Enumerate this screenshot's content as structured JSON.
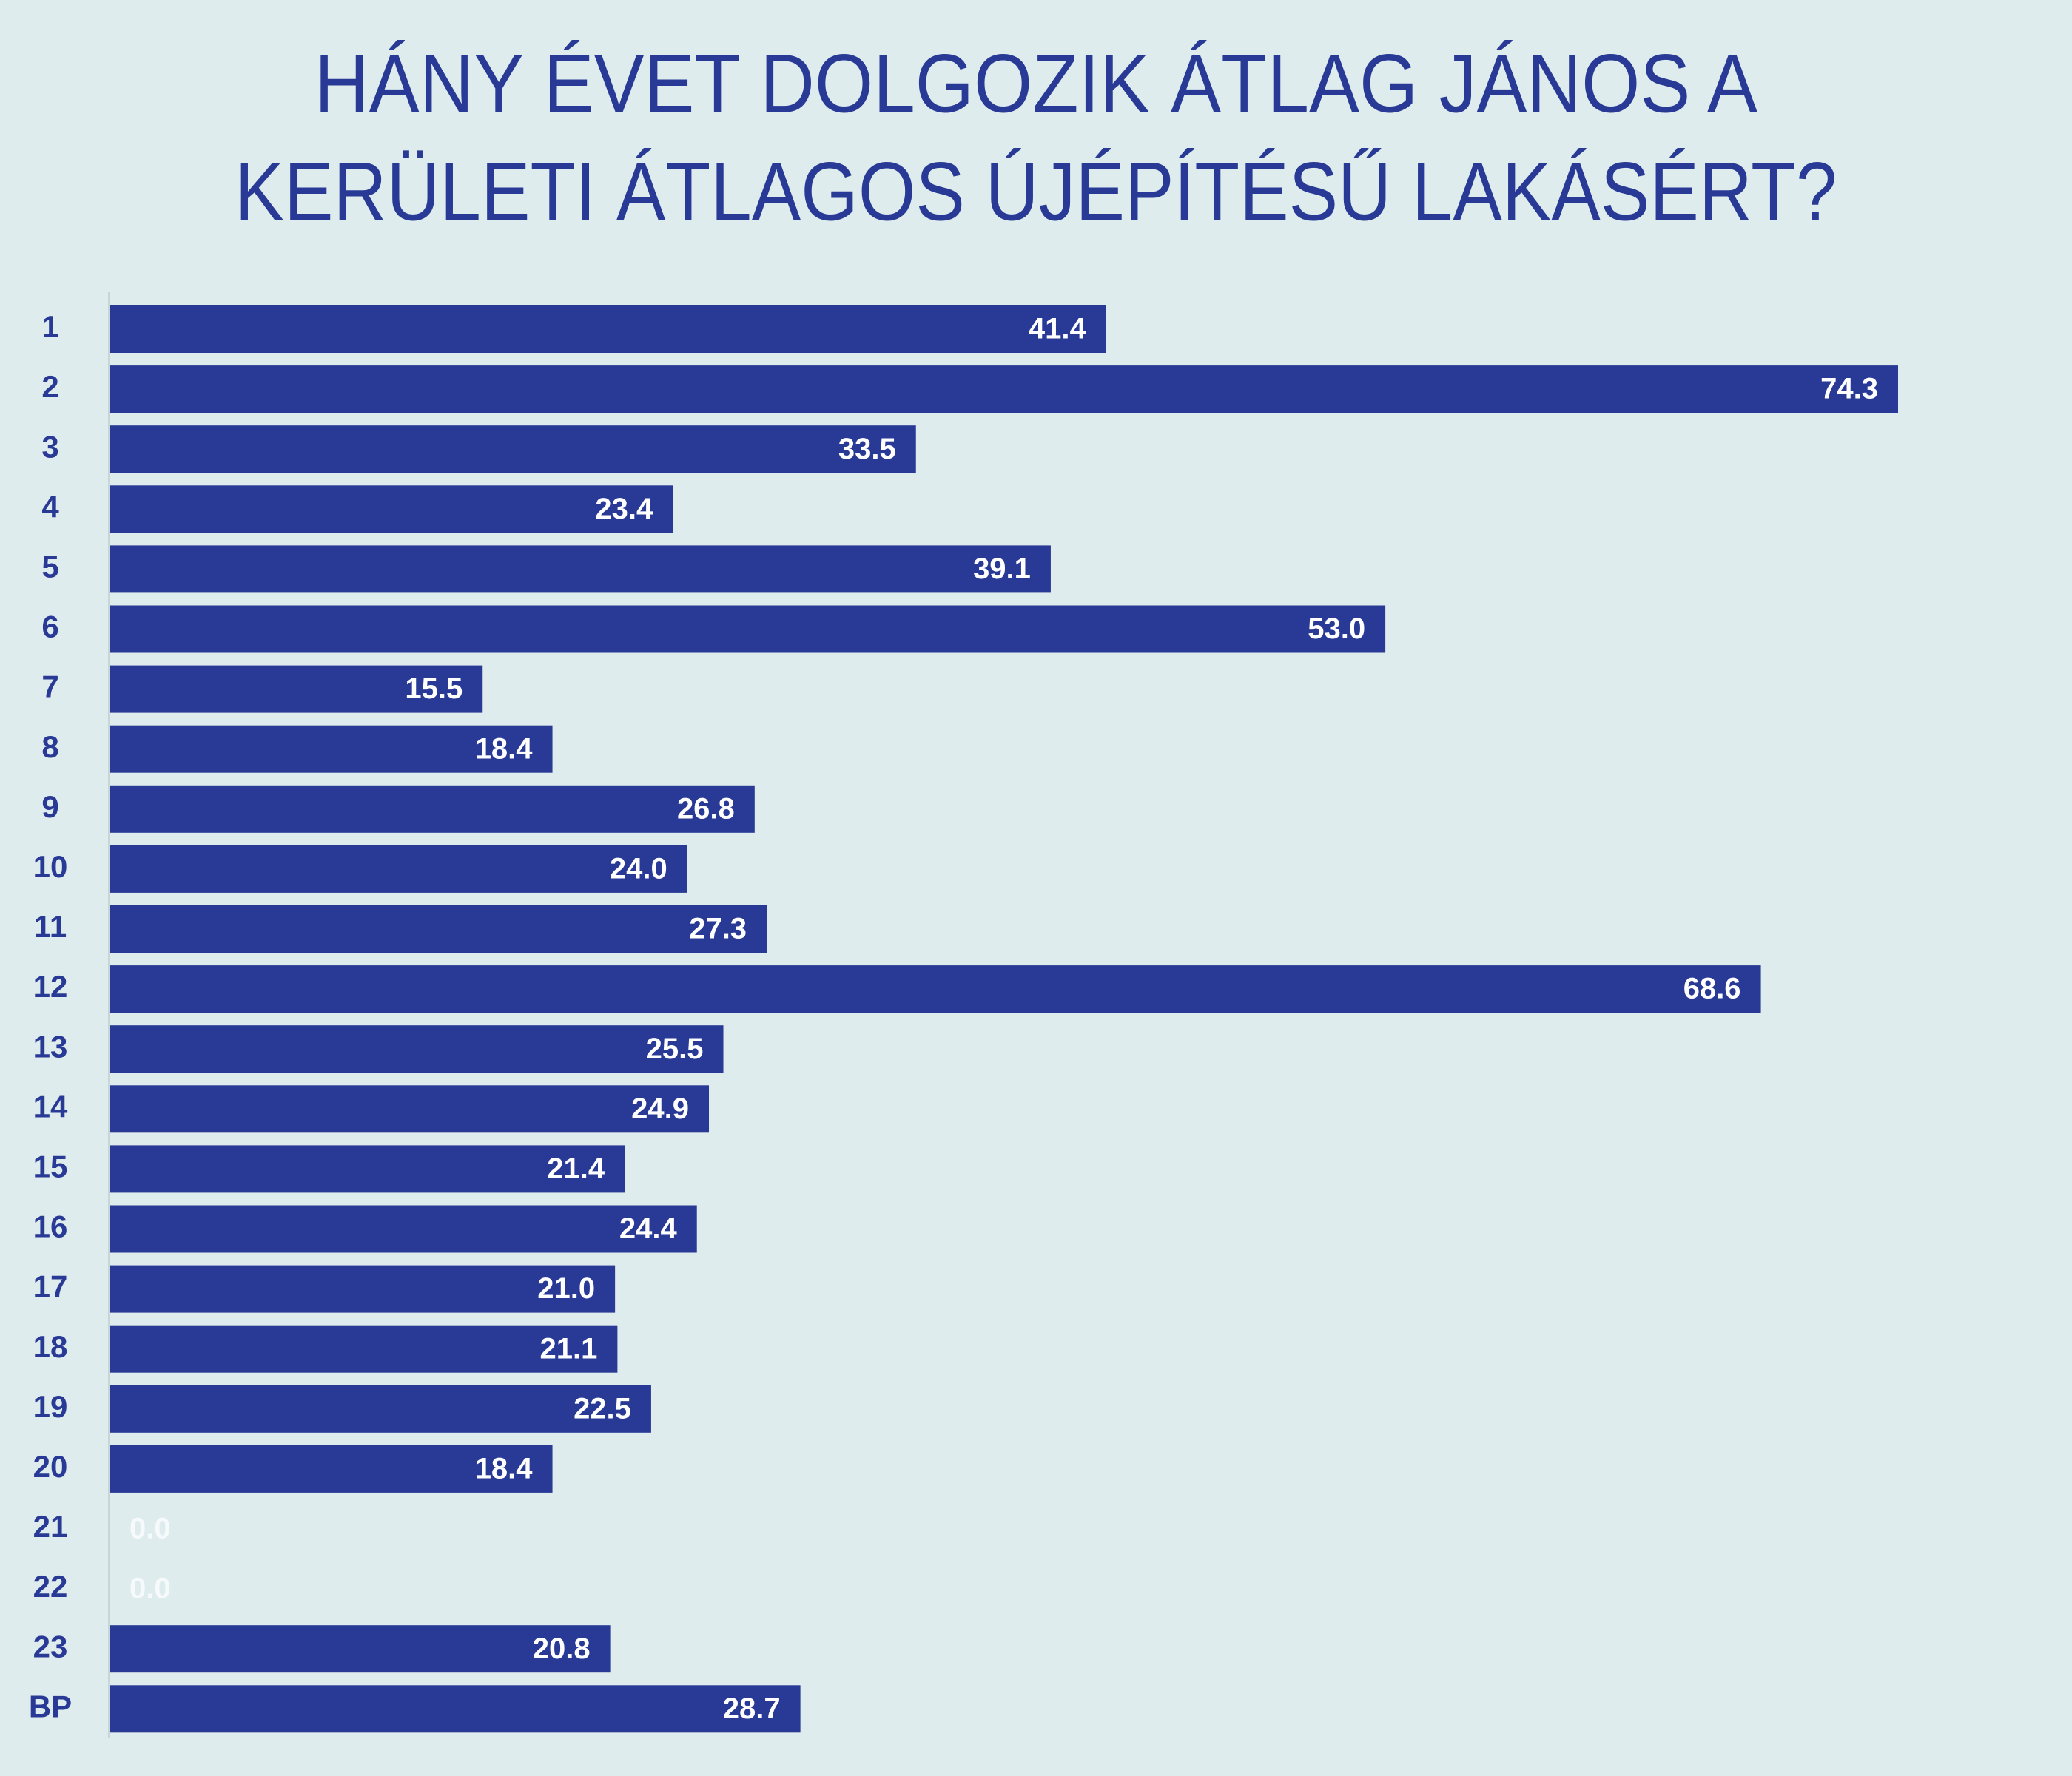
{
  "chart_data": {
    "type": "barh",
    "title": [
      "HÁNY ÉVET DOLGOZIK ÁTLAG JÁNOS A",
      "KERÜLETI ÁTLAGOS ÚJÉPÍTÉSŰ LAKÁSÉRT?"
    ],
    "categories": [
      "1",
      "2",
      "3",
      "4",
      "5",
      "6",
      "7",
      "8",
      "9",
      "10",
      "11",
      "12",
      "13",
      "14",
      "15",
      "16",
      "17",
      "18",
      "19",
      "20",
      "21",
      "22",
      "23",
      "BP"
    ],
    "values": [
      41.4,
      74.3,
      33.5,
      23.4,
      39.1,
      53.0,
      15.5,
      18.4,
      26.8,
      24.0,
      27.3,
      68.6,
      25.5,
      24.9,
      21.4,
      24.4,
      21.0,
      21.1,
      22.5,
      18.4,
      0,
      0,
      20.8,
      28.7
    ],
    "value_labels": [
      "41.4",
      "74.3",
      "33.5",
      "23.4",
      "39.1",
      "53.0",
      "15.5",
      "18.4",
      "26.8",
      "24.0",
      "27.3",
      "68.6",
      "25.5",
      "24.9",
      "21.4",
      "24.4",
      "21.0",
      "21.1",
      "22.5",
      "18.4",
      "0.0",
      "0.0",
      "20.8",
      "28.7"
    ],
    "color": "#283a96"
  }
}
